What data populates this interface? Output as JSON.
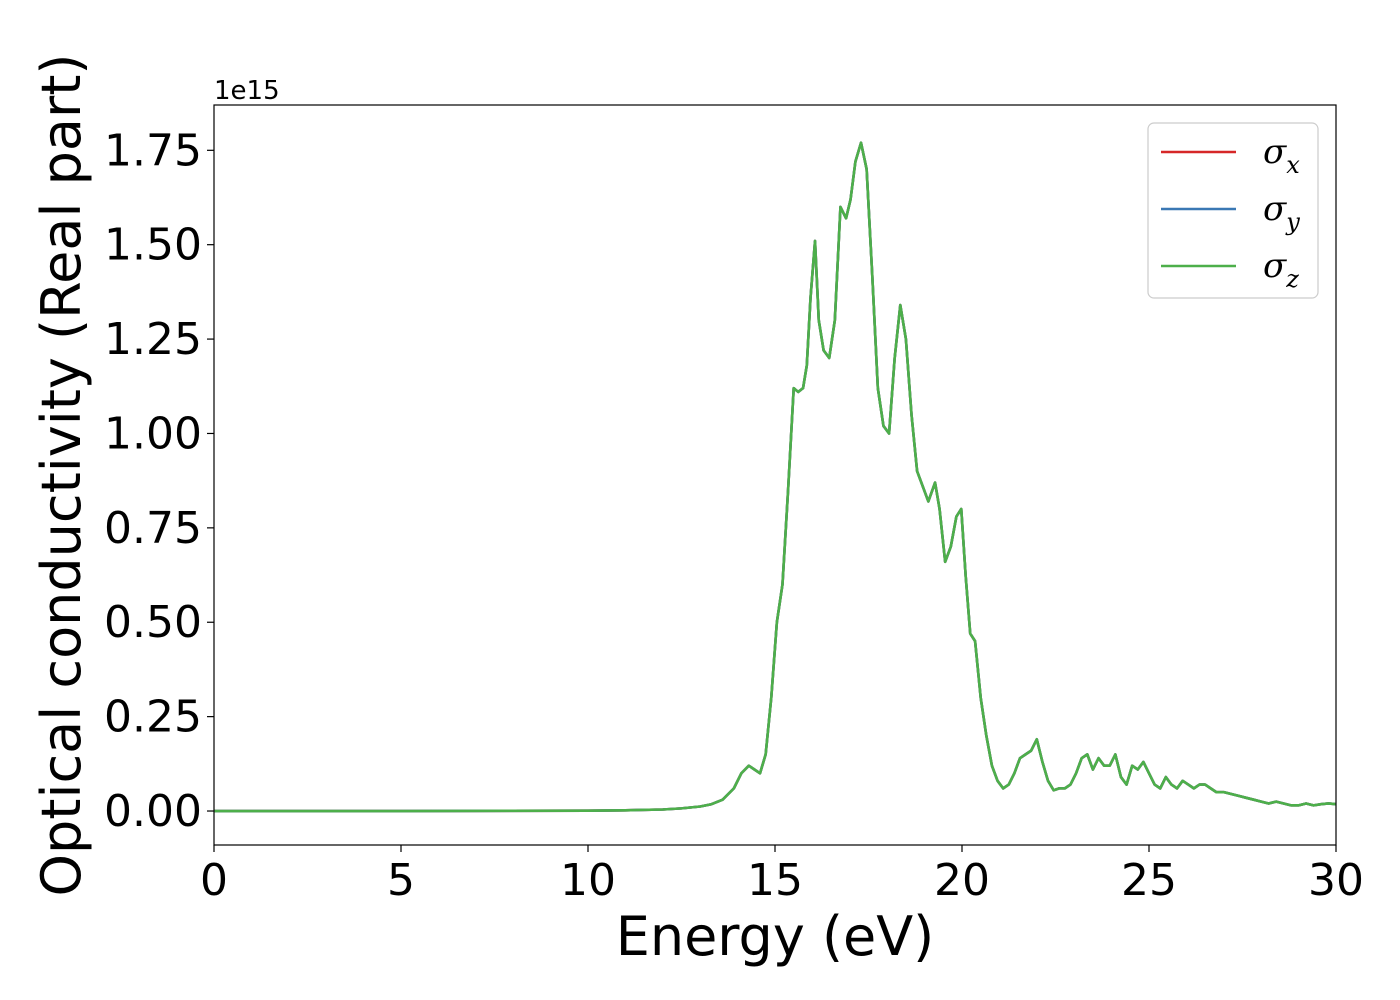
{
  "chart_data": {
    "type": "line",
    "title": "",
    "xlabel": "Energy (eV)",
    "ylabel": "Optical conductivity (Real part)",
    "y_offset_text": "1e15",
    "y_scale_factor": 1000000000000000.0,
    "xlim": [
      0,
      30
    ],
    "ylim": [
      -0.09,
      1.87
    ],
    "xticks": [
      0,
      5,
      10,
      15,
      20,
      25,
      30
    ],
    "xtick_labels": [
      "0",
      "5",
      "10",
      "15",
      "20",
      "25",
      "30"
    ],
    "yticks": [
      0.0,
      0.25,
      0.5,
      0.75,
      1.0,
      1.25,
      1.5,
      1.75
    ],
    "ytick_labels": [
      "0.00",
      "0.25",
      "0.50",
      "0.75",
      "1.00",
      "1.25",
      "1.50",
      "1.75"
    ],
    "grid": false,
    "legend_position": "upper-right",
    "x": [
      0,
      5,
      10,
      11,
      12,
      12.5,
      13,
      13.3,
      13.6,
      13.9,
      14.1,
      14.3,
      14.45,
      14.6,
      14.75,
      14.9,
      15.05,
      15.2,
      15.35,
      15.5,
      15.62,
      15.75,
      15.85,
      15.95,
      16.07,
      16.17,
      16.3,
      16.45,
      16.6,
      16.75,
      16.9,
      17.02,
      17.15,
      17.3,
      17.45,
      17.6,
      17.75,
      17.9,
      18.05,
      18.2,
      18.35,
      18.5,
      18.65,
      18.8,
      18.95,
      19.1,
      19.28,
      19.4,
      19.55,
      19.7,
      19.85,
      19.98,
      20.1,
      20.22,
      20.35,
      20.5,
      20.65,
      20.8,
      20.95,
      21.1,
      21.25,
      21.4,
      21.55,
      21.7,
      21.85,
      22.0,
      22.15,
      22.3,
      22.45,
      22.6,
      22.75,
      22.9,
      23.05,
      23.2,
      23.35,
      23.5,
      23.65,
      23.8,
      23.95,
      24.1,
      24.25,
      24.4,
      24.55,
      24.7,
      24.85,
      25.0,
      25.15,
      25.3,
      25.45,
      25.6,
      25.75,
      25.9,
      26.05,
      26.2,
      26.35,
      26.5,
      26.65,
      26.8,
      27.0,
      27.2,
      27.4,
      27.6,
      27.8,
      28.0,
      28.2,
      28.4,
      28.6,
      28.8,
      29.0,
      29.2,
      29.4,
      29.6,
      29.8,
      30.0
    ],
    "series": [
      {
        "name": "σx",
        "color": "#d62728",
        "values": [
          0.0,
          0.0,
          0.001,
          0.002,
          0.004,
          0.007,
          0.012,
          0.018,
          0.03,
          0.06,
          0.1,
          0.12,
          0.11,
          0.1,
          0.15,
          0.3,
          0.5,
          0.6,
          0.85,
          1.12,
          1.11,
          1.12,
          1.18,
          1.36,
          1.51,
          1.3,
          1.22,
          1.2,
          1.3,
          1.6,
          1.57,
          1.62,
          1.72,
          1.77,
          1.7,
          1.42,
          1.12,
          1.02,
          1.0,
          1.2,
          1.34,
          1.25,
          1.05,
          0.9,
          0.86,
          0.82,
          0.87,
          0.8,
          0.66,
          0.7,
          0.78,
          0.8,
          0.62,
          0.47,
          0.45,
          0.3,
          0.2,
          0.12,
          0.08,
          0.06,
          0.07,
          0.1,
          0.14,
          0.15,
          0.16,
          0.19,
          0.13,
          0.08,
          0.055,
          0.06,
          0.06,
          0.07,
          0.1,
          0.14,
          0.15,
          0.11,
          0.14,
          0.12,
          0.12,
          0.15,
          0.09,
          0.07,
          0.12,
          0.11,
          0.13,
          0.1,
          0.07,
          0.06,
          0.09,
          0.07,
          0.06,
          0.08,
          0.07,
          0.06,
          0.07,
          0.07,
          0.06,
          0.05,
          0.05,
          0.045,
          0.04,
          0.035,
          0.03,
          0.025,
          0.02,
          0.025,
          0.02,
          0.015,
          0.015,
          0.02,
          0.015,
          0.018,
          0.02,
          0.018
        ]
      },
      {
        "name": "σy",
        "color": "#3a78b4",
        "values": [
          0.0,
          0.0,
          0.001,
          0.002,
          0.004,
          0.007,
          0.012,
          0.018,
          0.03,
          0.06,
          0.1,
          0.12,
          0.11,
          0.1,
          0.15,
          0.3,
          0.5,
          0.6,
          0.85,
          1.12,
          1.11,
          1.12,
          1.18,
          1.36,
          1.51,
          1.3,
          1.22,
          1.2,
          1.3,
          1.6,
          1.57,
          1.62,
          1.72,
          1.77,
          1.7,
          1.42,
          1.12,
          1.02,
          1.0,
          1.2,
          1.34,
          1.25,
          1.05,
          0.9,
          0.86,
          0.82,
          0.87,
          0.8,
          0.66,
          0.7,
          0.78,
          0.8,
          0.62,
          0.47,
          0.45,
          0.3,
          0.2,
          0.12,
          0.08,
          0.06,
          0.07,
          0.1,
          0.14,
          0.15,
          0.16,
          0.19,
          0.13,
          0.08,
          0.055,
          0.06,
          0.06,
          0.07,
          0.1,
          0.14,
          0.15,
          0.11,
          0.14,
          0.12,
          0.12,
          0.15,
          0.09,
          0.07,
          0.12,
          0.11,
          0.13,
          0.1,
          0.07,
          0.06,
          0.09,
          0.07,
          0.06,
          0.08,
          0.07,
          0.06,
          0.07,
          0.07,
          0.06,
          0.05,
          0.05,
          0.045,
          0.04,
          0.035,
          0.03,
          0.025,
          0.02,
          0.025,
          0.02,
          0.015,
          0.015,
          0.02,
          0.015,
          0.018,
          0.02,
          0.018
        ]
      },
      {
        "name": "σz",
        "color": "#4daf4a",
        "values": [
          0.0,
          0.0,
          0.001,
          0.002,
          0.004,
          0.007,
          0.012,
          0.018,
          0.03,
          0.06,
          0.1,
          0.12,
          0.11,
          0.1,
          0.15,
          0.3,
          0.5,
          0.6,
          0.85,
          1.12,
          1.11,
          1.12,
          1.18,
          1.36,
          1.51,
          1.3,
          1.22,
          1.2,
          1.3,
          1.6,
          1.57,
          1.62,
          1.72,
          1.77,
          1.7,
          1.42,
          1.12,
          1.02,
          1.0,
          1.2,
          1.34,
          1.25,
          1.05,
          0.9,
          0.86,
          0.82,
          0.87,
          0.8,
          0.66,
          0.7,
          0.78,
          0.8,
          0.62,
          0.47,
          0.45,
          0.3,
          0.2,
          0.12,
          0.08,
          0.06,
          0.07,
          0.1,
          0.14,
          0.15,
          0.16,
          0.19,
          0.13,
          0.08,
          0.055,
          0.06,
          0.06,
          0.07,
          0.1,
          0.14,
          0.15,
          0.11,
          0.14,
          0.12,
          0.12,
          0.15,
          0.09,
          0.07,
          0.12,
          0.11,
          0.13,
          0.1,
          0.07,
          0.06,
          0.09,
          0.07,
          0.06,
          0.08,
          0.07,
          0.06,
          0.07,
          0.07,
          0.06,
          0.05,
          0.05,
          0.045,
          0.04,
          0.035,
          0.03,
          0.025,
          0.02,
          0.025,
          0.02,
          0.015,
          0.015,
          0.02,
          0.015,
          0.018,
          0.02,
          0.018
        ]
      }
    ],
    "legend": [
      {
        "symbol": "σ",
        "sub": "x"
      },
      {
        "symbol": "σ",
        "sub": "y"
      },
      {
        "symbol": "σ",
        "sub": "z"
      }
    ]
  }
}
